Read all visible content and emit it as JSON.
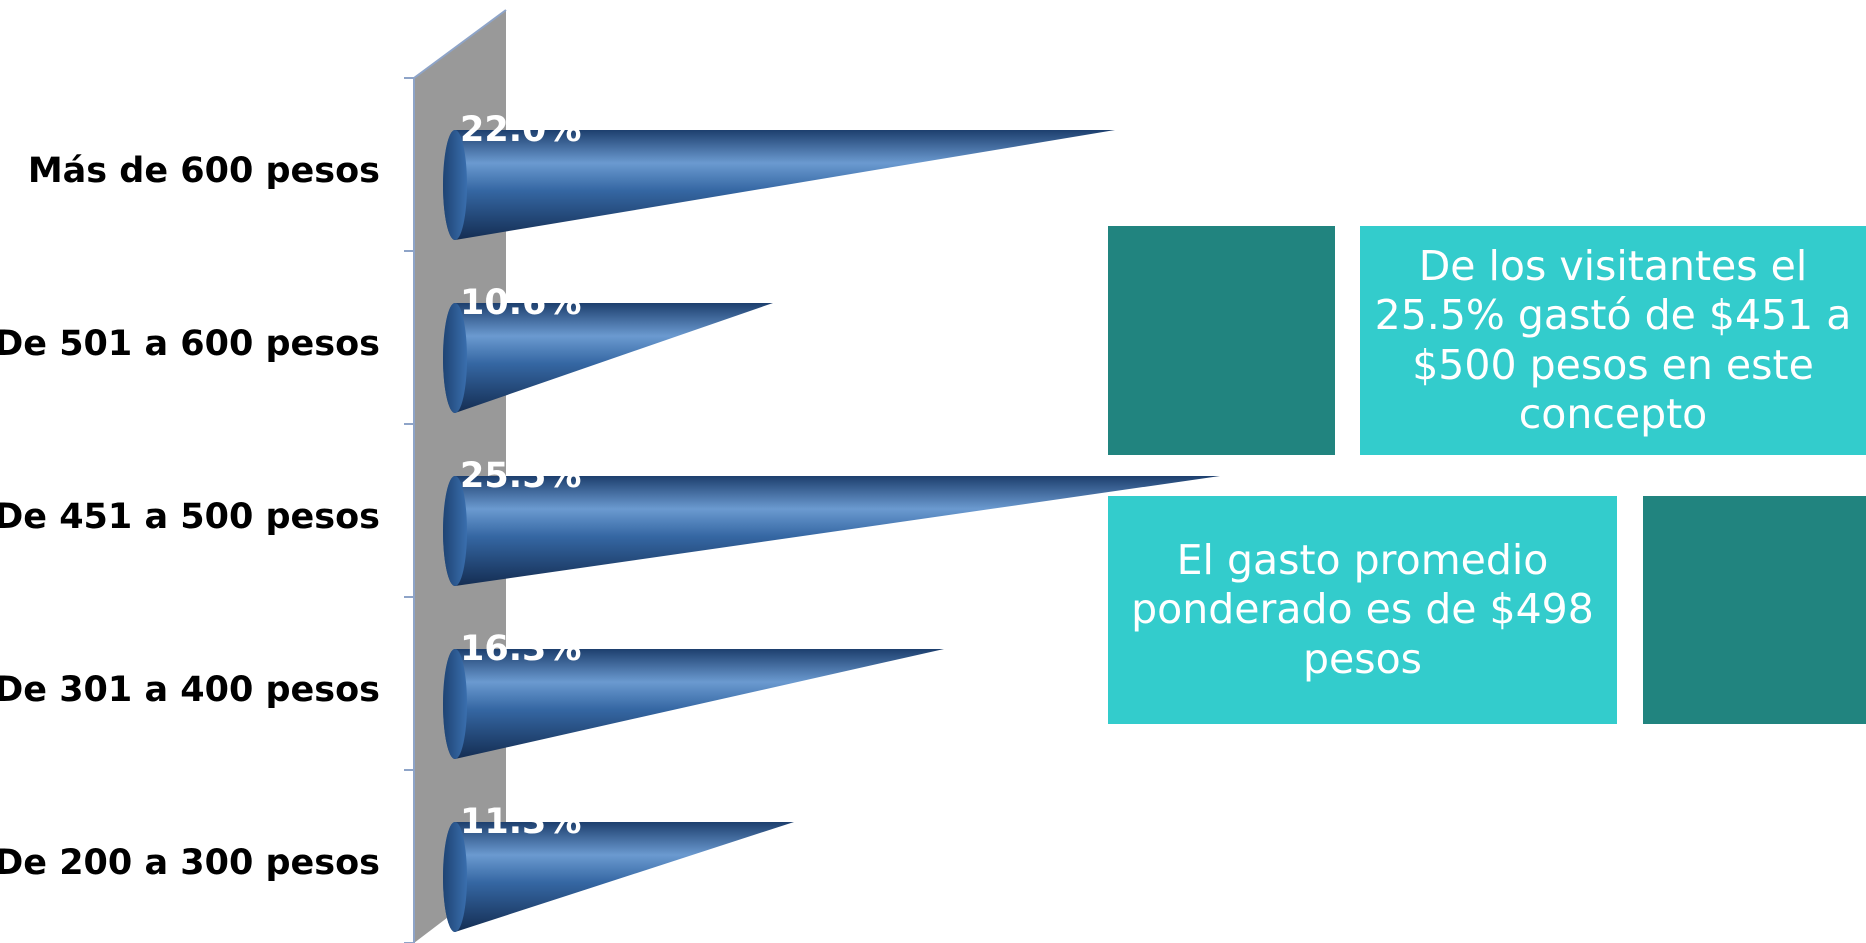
{
  "chart_data": {
    "type": "bar",
    "orientation": "horizontal",
    "categories": [
      "Más de 600 pesos",
      "De 501 a 600 pesos",
      "De 451 a 500 pesos",
      "De 301 a 400 pesos",
      "De 200 a 300 pesos"
    ],
    "values": [
      22.0,
      10.6,
      25.5,
      16.3,
      11.3
    ],
    "value_labels": [
      "22.0%",
      "10.6%",
      "25.5%",
      "16.3%",
      "11.3%"
    ],
    "title": "",
    "xlabel": "",
    "ylabel": "",
    "xlim": [
      0,
      30
    ],
    "grid": false,
    "legend": "none"
  },
  "callouts": {
    "top": "De los visitantes el 25.5% gastó de $451 a $500 pesos en este concepto",
    "bottom": "El gasto promedio ponderado es de $498 pesos"
  },
  "colors": {
    "cone": "#2f5f99",
    "wall": "#999999",
    "callout_light": "#33cccc",
    "callout_dark": "#21847f"
  }
}
